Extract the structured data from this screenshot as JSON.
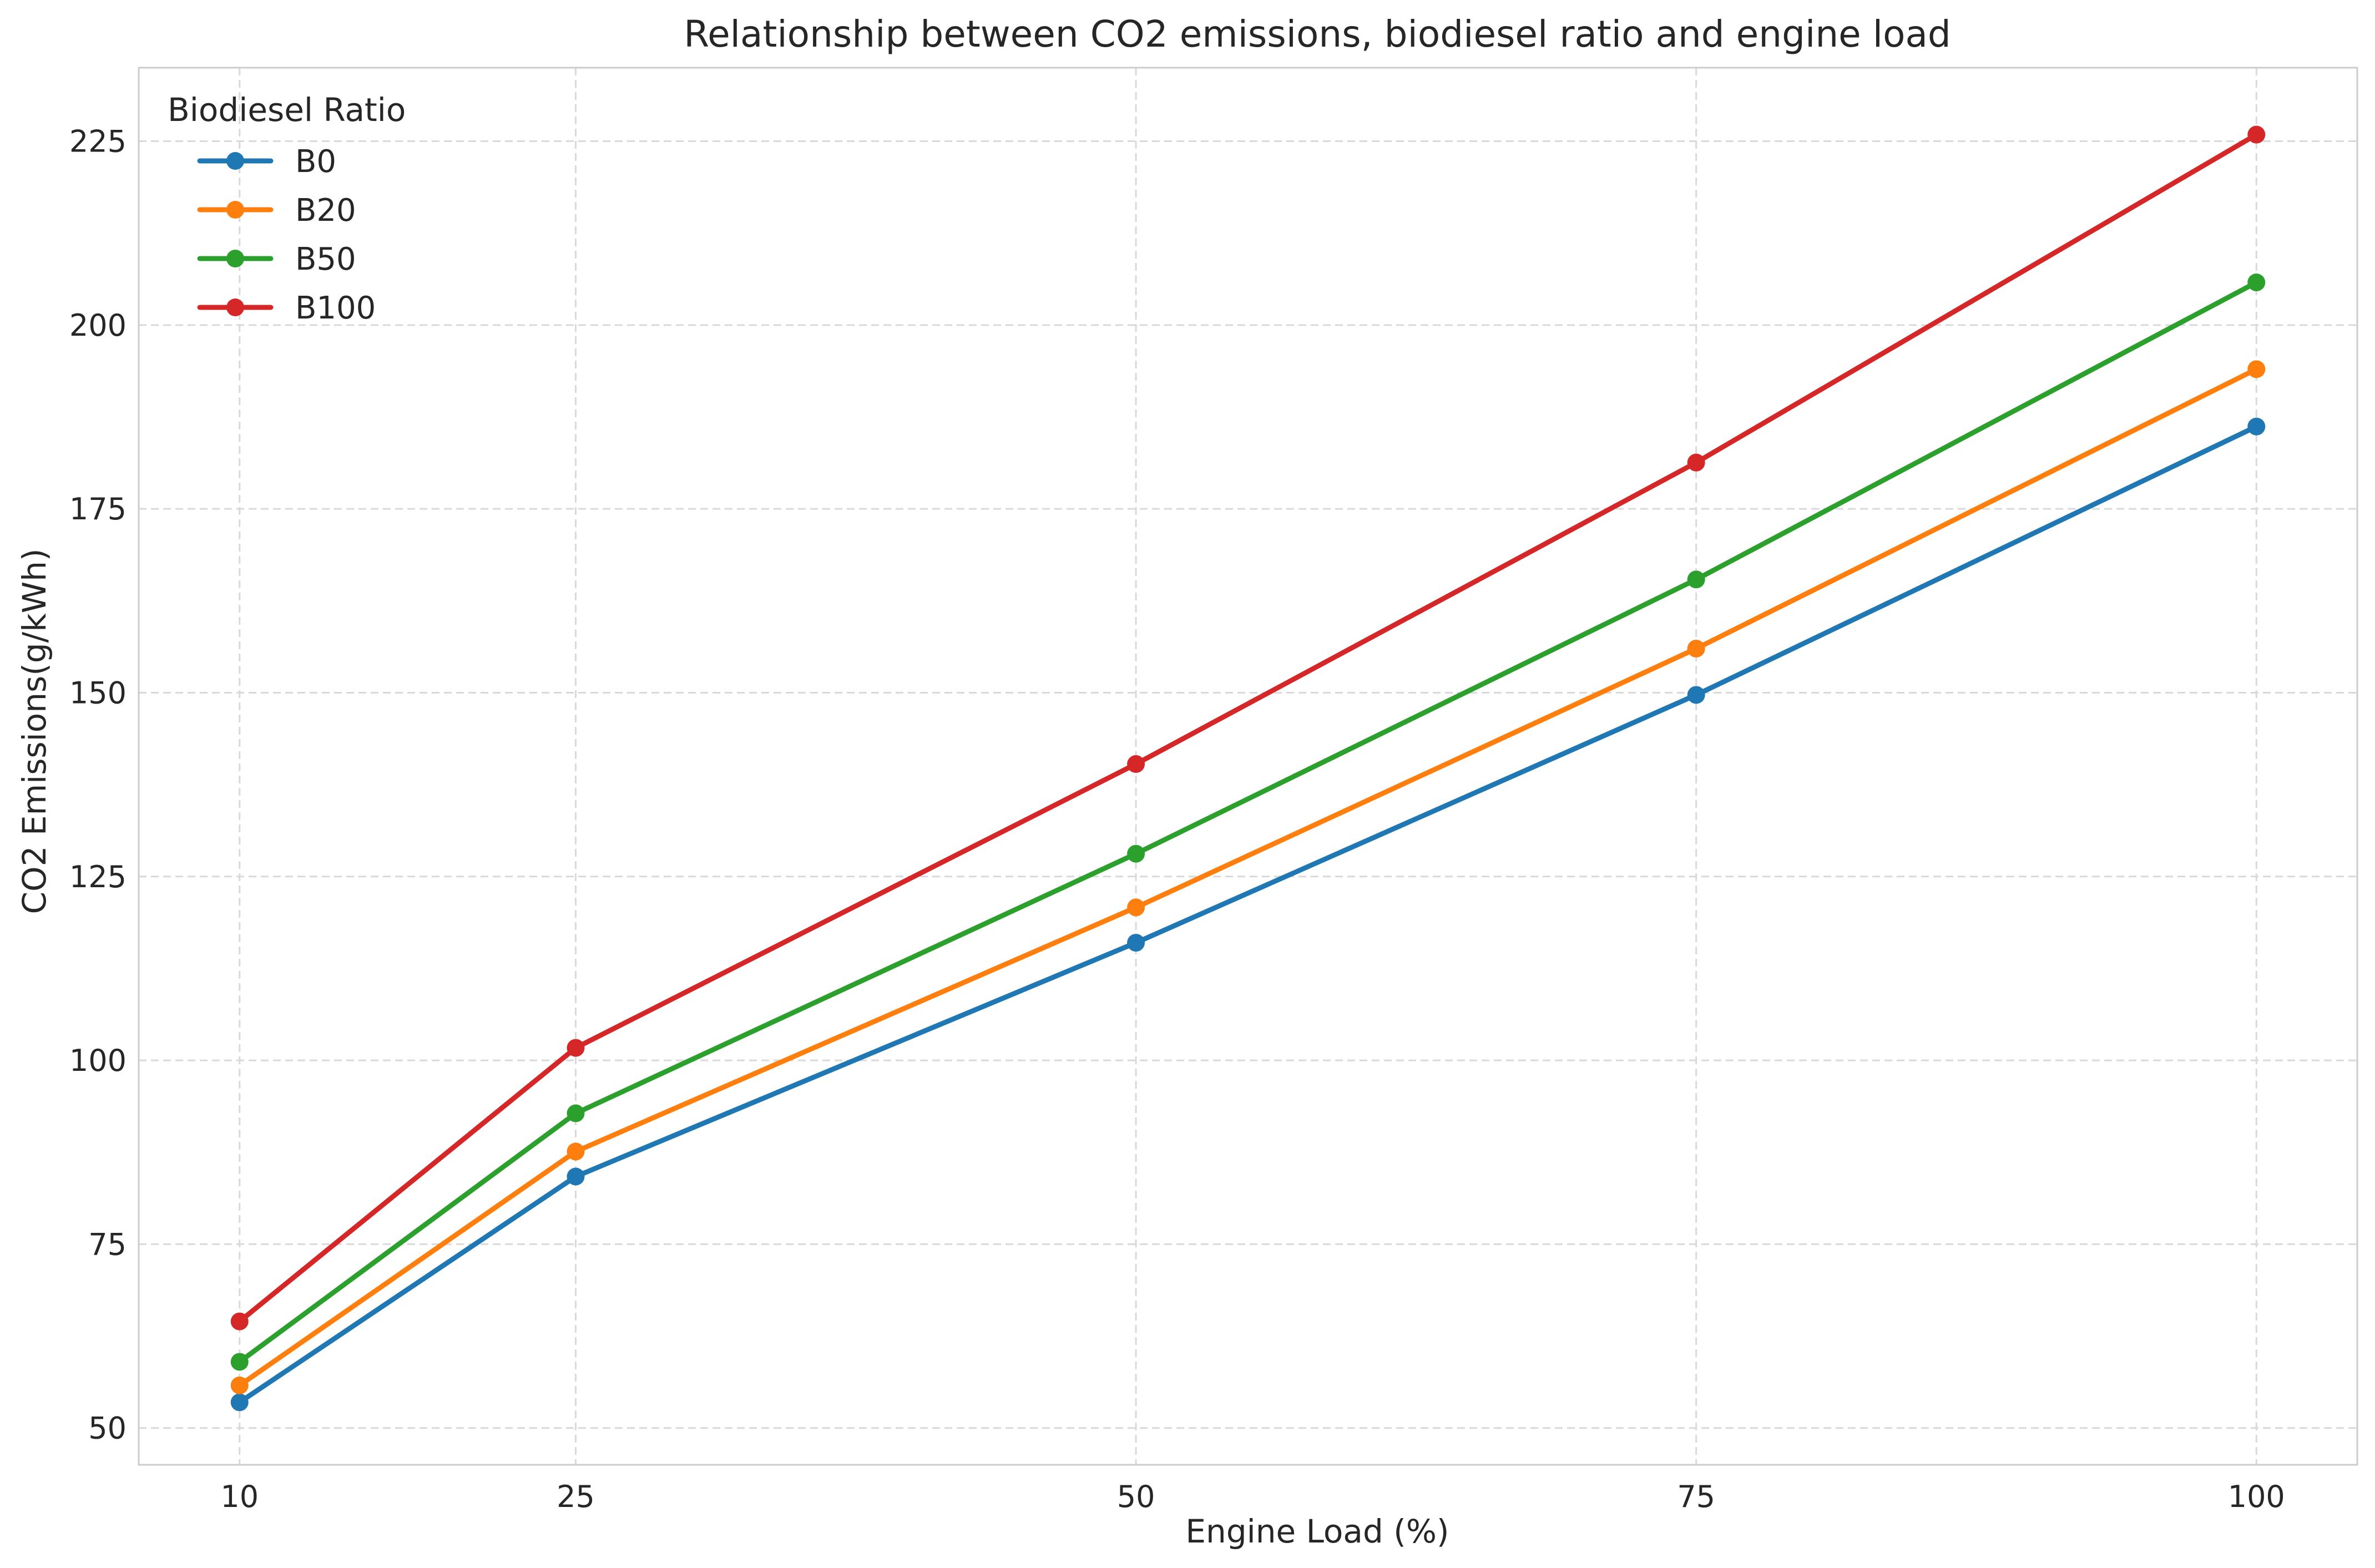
{
  "chart_data": {
    "type": "line",
    "title": "Relationship between CO2 emissions, biodiesel ratio and engine load",
    "xlabel": "Engine Load (%)",
    "ylabel": "CO2 Emissions(g/kWh)",
    "x": [
      10,
      25,
      50,
      75,
      100
    ],
    "x_ticks": [
      "10",
      "25",
      "50",
      "75",
      "100"
    ],
    "y_ticks": [
      "50",
      "75",
      "100",
      "125",
      "150",
      "175",
      "200",
      "225"
    ],
    "xlim": [
      5.5,
      104.5
    ],
    "ylim": [
      45,
      235
    ],
    "grid": true,
    "legend": {
      "title": "Biodiesel Ratio",
      "position": "top-left"
    },
    "series": [
      {
        "name": "B0",
        "color": "#1f77b4",
        "values": [
          53.5,
          84.2,
          116.0,
          149.7,
          186.2
        ]
      },
      {
        "name": "B20",
        "color": "#ff7f0e",
        "values": [
          55.8,
          87.6,
          120.8,
          156.0,
          194.0
        ]
      },
      {
        "name": "B50",
        "color": "#2ca02c",
        "values": [
          59.0,
          92.8,
          128.1,
          165.4,
          205.8
        ]
      },
      {
        "name": "B100",
        "color": "#d62728",
        "values": [
          64.5,
          101.7,
          140.3,
          181.3,
          225.9
        ]
      }
    ]
  }
}
